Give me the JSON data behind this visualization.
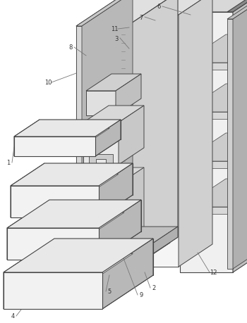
{
  "bg_color": "#ffffff",
  "ec": "#444444",
  "fc_panel": "#f0f0f0",
  "fc_side": "#d0d0d0",
  "fc_top": "#e0e0e0",
  "fc_tray": "#f2f2f2",
  "fc_tray_side": "#cccccc",
  "fc_tray_top": "#e8e8e8"
}
